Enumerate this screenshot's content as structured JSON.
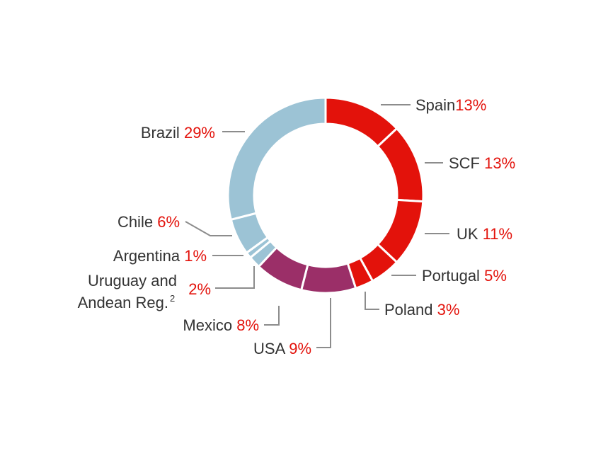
{
  "chart_data": {
    "type": "pie",
    "variant": "donut",
    "title": "",
    "slices": [
      {
        "label": "Spain",
        "value": 13,
        "value_label": "13%",
        "color": "#e3120b"
      },
      {
        "label": "SCF",
        "value": 13,
        "value_label": "13%",
        "color": "#e3120b"
      },
      {
        "label": "UK",
        "value": 11,
        "value_label": "11%",
        "color": "#e3120b"
      },
      {
        "label": "Portugal",
        "value": 5,
        "value_label": "5%",
        "color": "#e3120b"
      },
      {
        "label": "Poland",
        "value": 3,
        "value_label": "3%",
        "color": "#e3120b"
      },
      {
        "label": "USA",
        "value": 9,
        "value_label": "9%",
        "color": "#9b2f68"
      },
      {
        "label": "Mexico",
        "value": 8,
        "value_label": "8%",
        "color": "#9b2f68"
      },
      {
        "label_lines": [
          "Uruguay and",
          "Andean Reg."
        ],
        "footnote": "2",
        "value": 2,
        "value_label": "2%",
        "color": "#9cc3d5"
      },
      {
        "label": "Argentina",
        "value": 1,
        "value_label": "1%",
        "color": "#9cc3d5"
      },
      {
        "label": "Chile",
        "value": 6,
        "value_label": "6%",
        "color": "#9cc3d5"
      },
      {
        "label": "Brazil",
        "value": 29,
        "value_label": "29%",
        "color": "#9cc3d5"
      }
    ]
  }
}
